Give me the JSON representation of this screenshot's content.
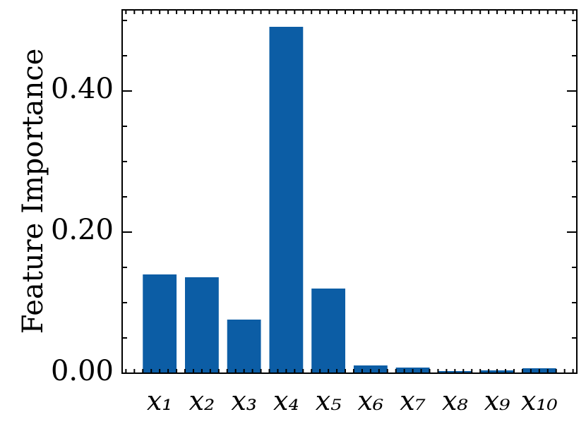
{
  "chart_data": {
    "type": "bar",
    "y_label": "Feature Importance",
    "categories": [
      "x₁",
      "x₂",
      "x₃",
      "x₄",
      "x₅",
      "x₆",
      "x₇",
      "x₈",
      "x₉",
      "x₁₀"
    ],
    "values": [
      0.14,
      0.136,
      0.076,
      0.491,
      0.12,
      0.011,
      0.008,
      0.003,
      0.004,
      0.007
    ],
    "color": "#0C5DA5",
    "ylim": [
      0,
      0.515
    ],
    "yticks": [
      {
        "value": 0,
        "label": "0.00"
      },
      {
        "value": 0.2,
        "label": "0.20"
      },
      {
        "value": 0.4,
        "label": "0.40"
      }
    ],
    "grid": false
  }
}
